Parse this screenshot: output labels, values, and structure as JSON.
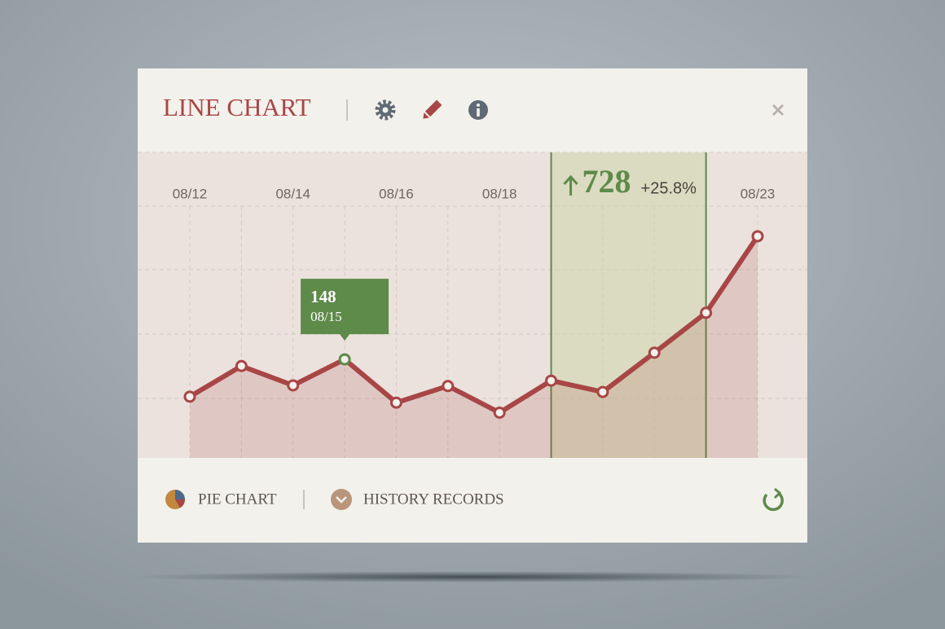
{
  "header": {
    "title": "LINE CHART"
  },
  "chart_data": {
    "type": "line",
    "categories": [
      "08/12",
      null,
      "08/14",
      null,
      "08/16",
      null,
      "08/18",
      null,
      null,
      null,
      null,
      "08/23"
    ],
    "values": [
      92,
      138,
      109,
      148,
      83,
      108,
      68,
      116,
      99,
      158,
      218,
      333
    ],
    "color": "#a84646",
    "ylim": [
      0,
      459
    ]
  },
  "tooltip": {
    "date": "08/15"
  },
  "highlight": {
    "value": "728",
    "change": "+25.8%"
  },
  "footer": {
    "links": [
      "PIE CHART",
      "HISTORY RECORDS"
    ]
  }
}
